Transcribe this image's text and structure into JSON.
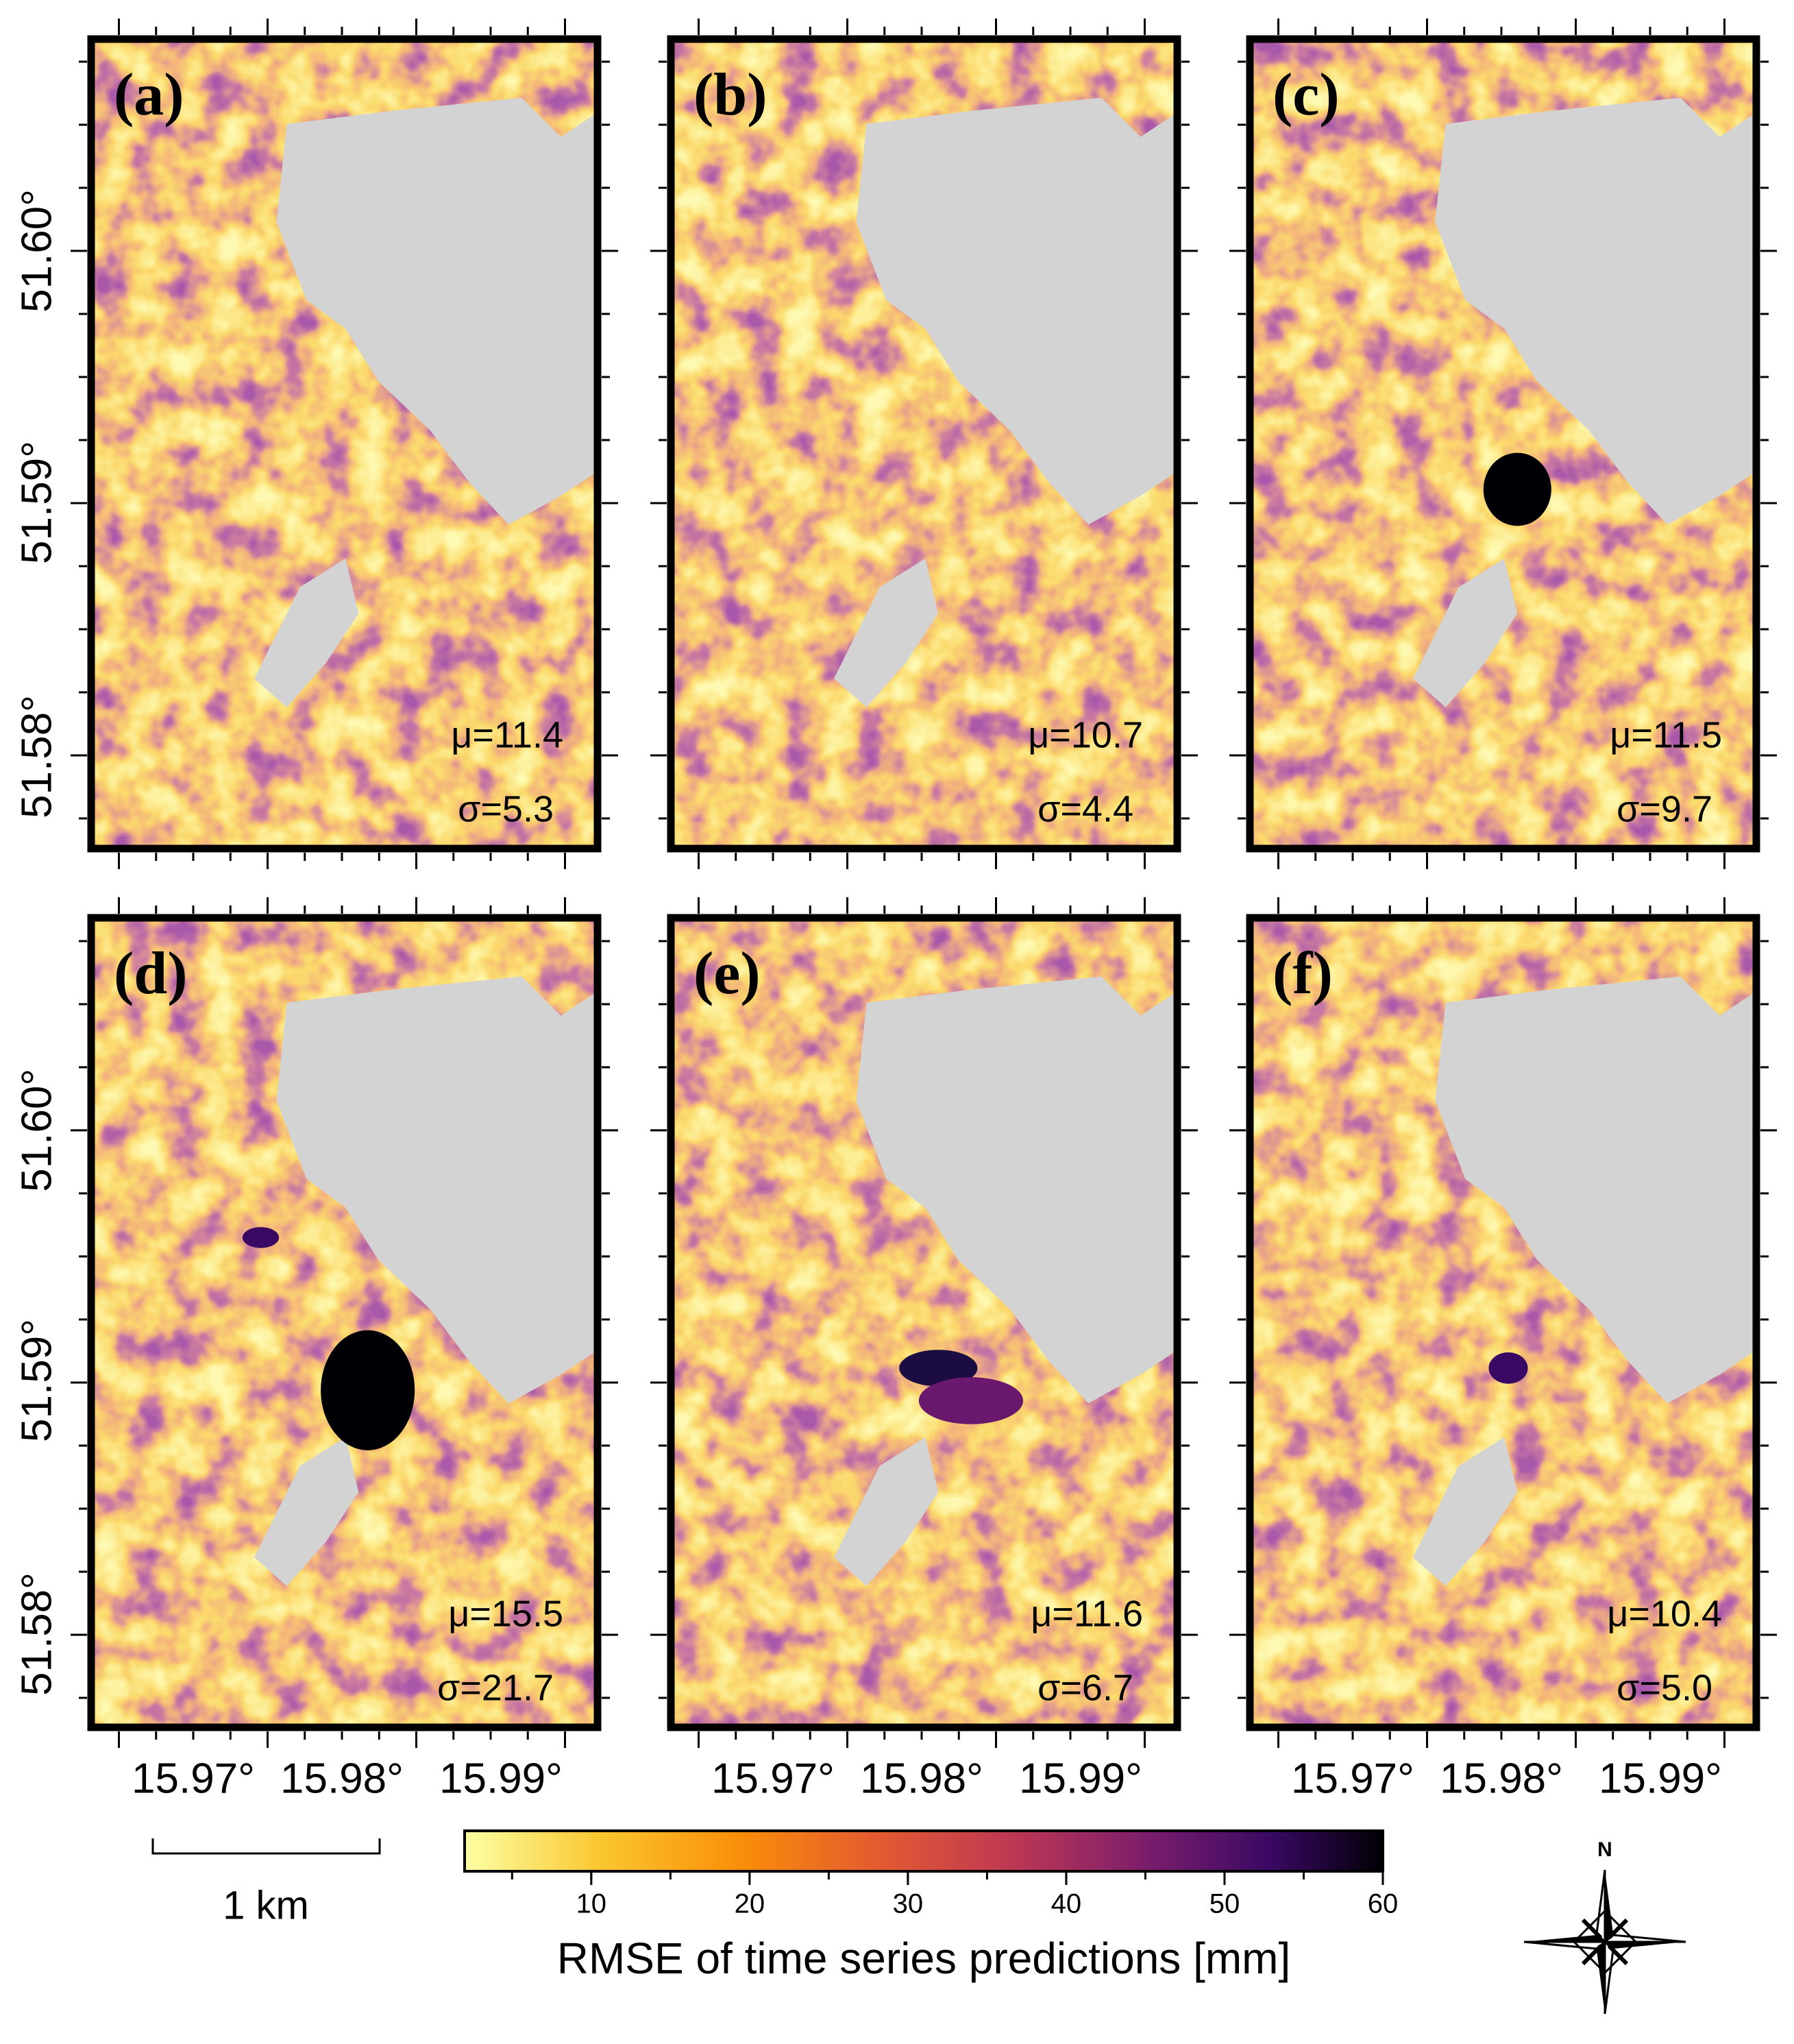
{
  "panels": [
    {
      "label": "(a)",
      "mu": "μ=11.4",
      "sigma": "σ=5.3"
    },
    {
      "label": "(b)",
      "mu": "μ=10.7",
      "sigma": "σ=4.4"
    },
    {
      "label": "(c)",
      "mu": "μ=11.5",
      "sigma": "σ=9.7"
    },
    {
      "label": "(d)",
      "mu": "μ=15.5",
      "sigma": "σ=21.7"
    },
    {
      "label": "(e)",
      "mu": "μ=11.6",
      "sigma": "σ=6.7"
    },
    {
      "label": "(f)",
      "mu": "μ=10.4",
      "sigma": "σ=5.0"
    }
  ],
  "y_axis": {
    "ticks": [
      "51.60°",
      "51.59°",
      "51.58°"
    ]
  },
  "x_axis": {
    "ticks": [
      "15.97°",
      "15.98°",
      "15.99°"
    ]
  },
  "colorbar": {
    "label": "RMSE of time series predictions [mm]",
    "range": [
      2,
      60
    ],
    "ticks": [
      10,
      20,
      30,
      40,
      50,
      60
    ]
  },
  "scale_bar": {
    "label": "1 km"
  },
  "compass": {
    "label": "N"
  }
}
